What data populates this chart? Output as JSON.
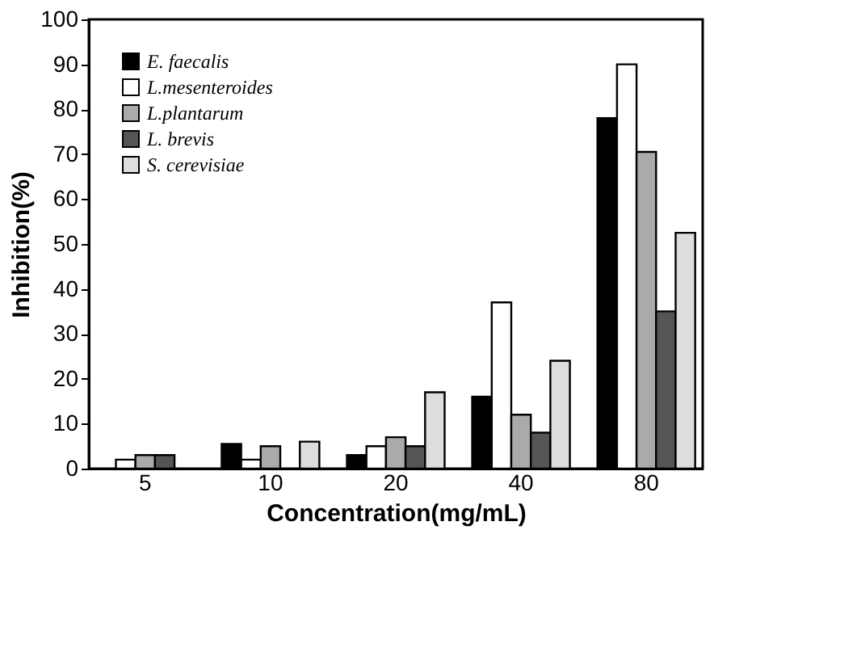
{
  "chart_data": {
    "type": "bar",
    "xlabel": "Concentration(mg/mL)",
    "ylabel": "Inhibition(%)",
    "categories": [
      "5",
      "10",
      "20",
      "40",
      "80"
    ],
    "series": [
      {
        "name": "E. faecalis",
        "color": "#000000",
        "values": [
          null,
          5.5,
          3,
          16,
          78
        ]
      },
      {
        "name": "L.mesenteroides",
        "color": "#ffffff",
        "values": [
          2,
          2,
          5,
          37,
          90
        ]
      },
      {
        "name": "L.plantarum",
        "color": "#aaaaaa",
        "values": [
          3,
          5,
          7,
          12,
          70.5
        ]
      },
      {
        "name": "L. brevis",
        "color": "#555555",
        "values": [
          3,
          null,
          5,
          8,
          35
        ]
      },
      {
        "name": "S. cerevisiae",
        "color": "#dddddd",
        "values": [
          null,
          6,
          17,
          24,
          52.5
        ]
      }
    ],
    "ylim": [
      0,
      100
    ],
    "yticks": [
      0,
      10,
      20,
      30,
      40,
      50,
      60,
      70,
      80,
      90,
      100
    ],
    "grid": false,
    "legend": "top left"
  }
}
